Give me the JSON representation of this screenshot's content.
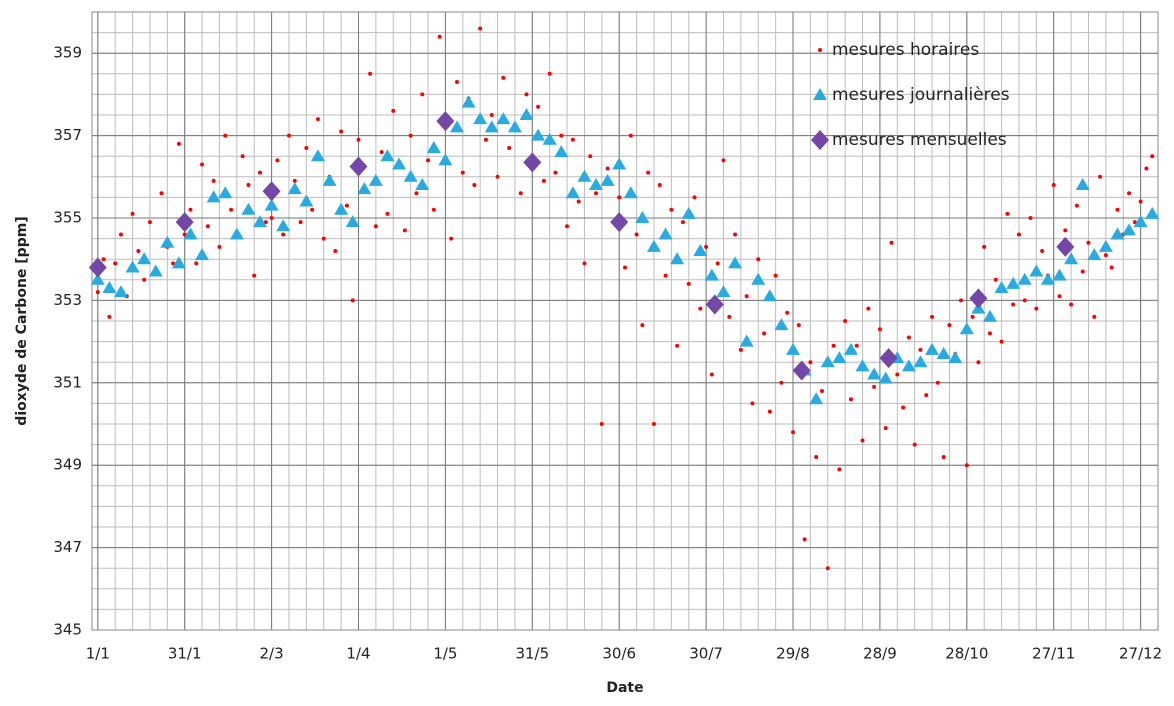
{
  "chart_data": {
    "type": "scatter",
    "xlabel": "Date",
    "ylabel": "dioxyde de Carbone [ppm]",
    "xlim": [
      -2,
      366
    ],
    "ylim": [
      345,
      360
    ],
    "xticks": [
      {
        "value": 0,
        "label": "1/1"
      },
      {
        "value": 30,
        "label": "31/1"
      },
      {
        "value": 60,
        "label": "2/3"
      },
      {
        "value": 90,
        "label": "1/4"
      },
      {
        "value": 120,
        "label": "1/5"
      },
      {
        "value": 150,
        "label": "31/5"
      },
      {
        "value": 180,
        "label": "30/6"
      },
      {
        "value": 210,
        "label": "30/7"
      },
      {
        "value": 240,
        "label": "29/8"
      },
      {
        "value": 270,
        "label": "28/9"
      },
      {
        "value": 300,
        "label": "28/10"
      },
      {
        "value": 330,
        "label": "27/11"
      },
      {
        "value": 360,
        "label": "27/12"
      }
    ],
    "yticks": [
      345,
      347,
      349,
      351,
      353,
      355,
      357,
      359
    ],
    "grid": true,
    "legend": "upper right",
    "series": [
      {
        "name": "mesures horaires",
        "color": "#ff0000",
        "marker": "circle",
        "x": [
          0,
          2,
          4,
          6,
          8,
          10,
          12,
          14,
          16,
          18,
          20,
          22,
          24,
          26,
          28,
          30,
          32,
          34,
          36,
          38,
          40,
          42,
          44,
          46,
          48,
          50,
          52,
          54,
          56,
          58,
          60,
          62,
          64,
          66,
          68,
          70,
          72,
          74,
          76,
          78,
          80,
          82,
          84,
          86,
          88,
          90,
          92,
          94,
          96,
          98,
          100,
          102,
          104,
          106,
          108,
          110,
          112,
          114,
          116,
          118,
          120,
          122,
          124,
          126,
          128,
          130,
          132,
          134,
          136,
          138,
          140,
          142,
          144,
          146,
          148,
          150,
          152,
          154,
          156,
          158,
          160,
          162,
          164,
          166,
          168,
          170,
          172,
          174,
          176,
          178,
          180,
          182,
          184,
          186,
          188,
          190,
          192,
          194,
          196,
          198,
          200,
          202,
          204,
          206,
          208,
          210,
          212,
          214,
          216,
          218,
          220,
          222,
          224,
          226,
          228,
          230,
          232,
          234,
          236,
          238,
          240,
          242,
          244,
          246,
          248,
          250,
          252,
          254,
          256,
          258,
          260,
          262,
          264,
          266,
          268,
          270,
          272,
          274,
          276,
          278,
          280,
          282,
          284,
          286,
          288,
          290,
          292,
          294,
          296,
          298,
          300,
          302,
          304,
          306,
          308,
          310,
          312,
          314,
          316,
          318,
          320,
          322,
          324,
          326,
          328,
          330,
          332,
          334,
          336,
          338,
          340,
          342,
          344,
          346,
          348,
          350,
          352,
          354,
          356,
          358,
          360,
          362,
          364
        ],
        "values": [
          353.2,
          354.0,
          352.6,
          353.9,
          354.6,
          353.1,
          355.1,
          354.2,
          353.5,
          354.9,
          353.7,
          355.6,
          354.3,
          353.9,
          356.8,
          354.6,
          355.2,
          353.9,
          356.3,
          354.8,
          355.9,
          354.3,
          357.0,
          355.2,
          354.6,
          356.5,
          355.8,
          353.6,
          356.1,
          354.9,
          355.0,
          356.4,
          354.6,
          357.0,
          355.9,
          354.9,
          356.7,
          355.2,
          357.4,
          354.5,
          356.0,
          354.2,
          357.1,
          355.3,
          353.0,
          356.9,
          355.7,
          358.5,
          354.8,
          356.6,
          355.1,
          357.6,
          356.3,
          354.7,
          357.0,
          355.6,
          358.0,
          356.4,
          355.2,
          359.4,
          357.2,
          354.5,
          358.3,
          356.1,
          357.9,
          355.8,
          359.6,
          356.9,
          357.5,
          356.0,
          358.4,
          356.7,
          357.2,
          355.6,
          358.0,
          356.3,
          357.7,
          355.9,
          358.5,
          356.1,
          357.0,
          354.8,
          356.9,
          355.4,
          353.9,
          356.5,
          355.6,
          350.0,
          356.2,
          354.9,
          355.5,
          353.8,
          357.0,
          354.6,
          352.4,
          356.1,
          350.0,
          355.8,
          353.6,
          355.2,
          351.9,
          354.9,
          353.4,
          355.5,
          352.8,
          354.3,
          351.2,
          353.9,
          356.4,
          352.6,
          354.6,
          351.8,
          353.1,
          350.5,
          354.0,
          352.2,
          350.3,
          353.6,
          351.0,
          352.7,
          349.8,
          352.4,
          347.2,
          351.5,
          349.2,
          350.8,
          346.5,
          351.9,
          348.9,
          352.5,
          350.6,
          351.9,
          349.6,
          352.8,
          350.9,
          352.3,
          349.9,
          354.4,
          351.2,
          350.4,
          352.1,
          349.5,
          351.8,
          350.7,
          352.6,
          351.0,
          349.2,
          352.4,
          351.7,
          353.0,
          349.0,
          352.6,
          351.5,
          354.3,
          352.2,
          353.5,
          352.0,
          355.1,
          352.9,
          354.6,
          353.0,
          355.0,
          352.8,
          354.2,
          353.6,
          355.8,
          353.1,
          354.7,
          352.9,
          355.3,
          353.7,
          354.4,
          352.6,
          356.0,
          354.1,
          353.8,
          355.2,
          354.6,
          355.6,
          354.9,
          355.4,
          356.2,
          356.5
        ]
      },
      {
        "name": "mesures journalières",
        "color": "#29abe2",
        "marker": "triangle",
        "x": [
          0,
          4,
          8,
          12,
          16,
          20,
          24,
          28,
          32,
          36,
          40,
          44,
          48,
          52,
          56,
          60,
          64,
          68,
          72,
          76,
          80,
          84,
          88,
          92,
          96,
          100,
          104,
          108,
          112,
          116,
          120,
          124,
          128,
          132,
          136,
          140,
          144,
          148,
          152,
          156,
          160,
          164,
          168,
          172,
          176,
          180,
          184,
          188,
          192,
          196,
          200,
          204,
          208,
          212,
          216,
          220,
          224,
          228,
          232,
          236,
          240,
          244,
          248,
          252,
          256,
          260,
          264,
          268,
          272,
          276,
          280,
          284,
          288,
          292,
          296,
          300,
          304,
          308,
          312,
          316,
          320,
          324,
          328,
          332,
          336,
          340,
          344,
          348,
          352,
          356,
          360,
          364
        ],
        "values": [
          353.5,
          353.3,
          353.2,
          353.8,
          354.0,
          353.7,
          354.4,
          353.9,
          354.6,
          354.1,
          355.5,
          355.6,
          354.6,
          355.2,
          354.9,
          355.3,
          354.8,
          355.7,
          355.4,
          356.5,
          355.9,
          355.2,
          354.9,
          355.7,
          355.9,
          356.5,
          356.3,
          356.0,
          355.8,
          356.7,
          356.4,
          357.2,
          357.8,
          357.4,
          357.2,
          357.4,
          357.2,
          357.5,
          357.0,
          356.9,
          356.6,
          355.6,
          356.0,
          355.8,
          355.9,
          356.3,
          355.6,
          355.0,
          354.3,
          354.6,
          354.0,
          355.1,
          354.2,
          353.6,
          353.2,
          353.9,
          352.0,
          353.5,
          353.1,
          352.4,
          351.8,
          351.3,
          350.6,
          351.5,
          351.6,
          351.8,
          351.4,
          351.2,
          351.1,
          351.6,
          351.4,
          351.5,
          351.8,
          351.7,
          351.6,
          352.3,
          352.8,
          352.6,
          353.3,
          353.4,
          353.5,
          353.7,
          353.5,
          353.6,
          354.0,
          355.8,
          354.1,
          354.3,
          354.6,
          354.7,
          354.9,
          355.1
        ]
      },
      {
        "name": "mesures mensuelles",
        "color": "#7446a8",
        "marker": "diamond",
        "x": [
          0,
          30,
          60,
          90,
          120,
          150,
          180,
          213,
          243,
          273,
          304,
          334
        ],
        "values": [
          353.8,
          354.9,
          355.65,
          356.25,
          357.35,
          356.35,
          354.9,
          352.9,
          351.3,
          351.6,
          353.05,
          354.3
        ]
      }
    ]
  }
}
